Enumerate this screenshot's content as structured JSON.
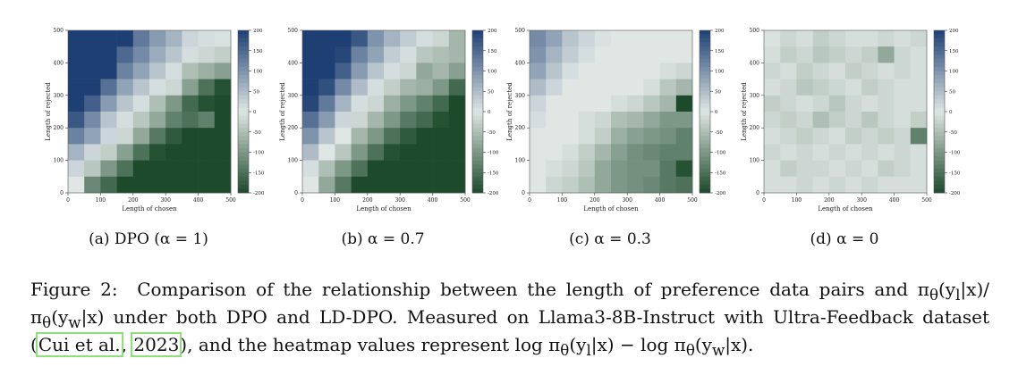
{
  "colorbar": {
    "min": -200,
    "max": 200,
    "ticks": [
      200,
      150,
      100,
      50,
      0,
      -50,
      -100,
      -150,
      -200
    ]
  },
  "colormap": {
    "negative": "#1c4a2b",
    "mid": "#dfe6e4",
    "positive": "#1d3f73"
  },
  "chart_data": [
    {
      "type": "heatmap",
      "xlabel": "Length of chosen",
      "ylabel": "Length of rejected",
      "xticks": [
        0,
        100,
        200,
        300,
        400,
        500
      ],
      "yticks": [
        0,
        100,
        200,
        300,
        400,
        500
      ],
      "xlim": [
        0,
        500
      ],
      "ylim": [
        0,
        500
      ],
      "subcaption": "(a) DPO (α = 1)",
      "rows_top_to_bottom": [
        [
          200,
          200,
          200,
          200,
          130,
          90,
          60,
          20,
          10,
          5
        ],
        [
          200,
          200,
          200,
          150,
          110,
          70,
          40,
          10,
          -20,
          -30
        ],
        [
          200,
          200,
          200,
          120,
          80,
          40,
          10,
          -50,
          -70,
          -90
        ],
        [
          200,
          200,
          140,
          80,
          40,
          10,
          -20,
          -90,
          -150,
          -190
        ],
        [
          200,
          160,
          90,
          40,
          10,
          -50,
          -100,
          -160,
          -190,
          -200
        ],
        [
          170,
          110,
          40,
          10,
          -40,
          -80,
          -130,
          -150,
          -130,
          -200
        ],
        [
          120,
          80,
          20,
          -20,
          -80,
          -140,
          -180,
          -200,
          -200,
          -200
        ],
        [
          60,
          20,
          -30,
          -90,
          -150,
          -190,
          -200,
          -200,
          -200,
          -200
        ],
        [
          20,
          -40,
          -100,
          -150,
          -200,
          -200,
          -200,
          -200,
          -200,
          -200
        ],
        [
          0,
          -120,
          -160,
          -200,
          -200,
          -200,
          -200,
          -200,
          -200,
          -200
        ]
      ]
    },
    {
      "type": "heatmap",
      "xlabel": "Length of chosen",
      "ylabel": "Length of rejected",
      "xticks": [
        0,
        100,
        200,
        300,
        400,
        500
      ],
      "yticks": [
        0,
        100,
        200,
        300,
        400,
        500
      ],
      "xlim": [
        0,
        500
      ],
      "ylim": [
        0,
        500
      ],
      "subcaption": "(b) α = 0.7",
      "rows_top_to_bottom": [
        [
          200,
          200,
          200,
          170,
          100,
          60,
          30,
          10,
          -20,
          -60
        ],
        [
          200,
          200,
          190,
          120,
          80,
          30,
          10,
          -40,
          -50,
          -60
        ],
        [
          200,
          200,
          160,
          90,
          40,
          10,
          -20,
          -80,
          -60,
          -90
        ],
        [
          200,
          180,
          110,
          50,
          10,
          -30,
          -60,
          -70,
          -100,
          -160
        ],
        [
          190,
          130,
          60,
          10,
          -20,
          -70,
          -100,
          -130,
          -160,
          -200
        ],
        [
          140,
          90,
          20,
          -20,
          -60,
          -100,
          -140,
          -160,
          -190,
          -200
        ],
        [
          100,
          40,
          0,
          -60,
          -100,
          -150,
          -180,
          -200,
          -200,
          -200
        ],
        [
          50,
          0,
          -40,
          -100,
          -150,
          -190,
          -200,
          -200,
          -200,
          -200
        ],
        [
          10,
          -50,
          -100,
          -150,
          -200,
          -200,
          -200,
          -200,
          -200,
          -200
        ],
        [
          0,
          -80,
          -140,
          -200,
          -200,
          -200,
          -200,
          -200,
          -200,
          -200
        ]
      ]
    },
    {
      "type": "heatmap",
      "xlabel": "Length of chosen",
      "ylabel": "Length of rejected",
      "xticks": [
        0,
        100,
        200,
        300,
        400,
        500
      ],
      "yticks": [
        0,
        100,
        200,
        300,
        400,
        500
      ],
      "xlim": [
        0,
        500
      ],
      "ylim": [
        0,
        500
      ],
      "subcaption": "(c) α = 0.3",
      "rows_top_to_bottom": [
        [
          110,
          80,
          40,
          20,
          5,
          0,
          0,
          0,
          0,
          0
        ],
        [
          100,
          60,
          30,
          10,
          0,
          0,
          0,
          0,
          0,
          0
        ],
        [
          80,
          40,
          10,
          0,
          0,
          0,
          0,
          0,
          -10,
          -20
        ],
        [
          50,
          20,
          0,
          0,
          0,
          0,
          0,
          -10,
          -40,
          -60
        ],
        [
          20,
          0,
          0,
          0,
          0,
          -10,
          -20,
          -40,
          -60,
          -200
        ],
        [
          10,
          0,
          0,
          -10,
          -20,
          -50,
          -60,
          -80,
          -100,
          -100
        ],
        [
          0,
          0,
          0,
          -10,
          -30,
          -70,
          -90,
          -100,
          -110,
          -130
        ],
        [
          0,
          0,
          -10,
          -30,
          -60,
          -90,
          -110,
          -120,
          -130,
          -130
        ],
        [
          0,
          -10,
          -20,
          -40,
          -80,
          -100,
          -110,
          -110,
          -140,
          -190
        ],
        [
          0,
          -20,
          -30,
          -50,
          -80,
          -100,
          -110,
          -120,
          -140,
          -150
        ]
      ]
    },
    {
      "type": "heatmap",
      "xlabel": "Length of chosen",
      "ylabel": "Length of rejected",
      "xticks": [
        0,
        100,
        200,
        300,
        400,
        500
      ],
      "yticks": [
        0,
        100,
        200,
        300,
        400,
        500
      ],
      "xlim": [
        0,
        500
      ],
      "ylim": [
        0,
        500
      ],
      "subcaption": "(d) α = 0",
      "rows_top_to_bottom": [
        [
          -5,
          -20,
          -10,
          -30,
          -20,
          -10,
          -10,
          -20,
          -10,
          -20
        ],
        [
          -10,
          -30,
          -20,
          -40,
          -30,
          -20,
          -30,
          -80,
          -20,
          -10
        ],
        [
          -20,
          -10,
          -30,
          -20,
          -10,
          -30,
          -20,
          -10,
          -20,
          -10
        ],
        [
          -10,
          -20,
          -40,
          -30,
          -20,
          -10,
          -30,
          -20,
          -10,
          -10
        ],
        [
          -30,
          -20,
          -10,
          -20,
          -40,
          -20,
          -10,
          -20,
          -10,
          -10
        ],
        [
          -20,
          -30,
          -20,
          -50,
          -30,
          -20,
          -40,
          -20,
          -10,
          -30
        ],
        [
          -10,
          -20,
          -30,
          -20,
          -10,
          -30,
          -20,
          -30,
          -20,
          -130
        ],
        [
          -20,
          -10,
          -20,
          -10,
          -20,
          -10,
          -20,
          -10,
          -20,
          -10
        ],
        [
          -10,
          -30,
          -20,
          -20,
          -10,
          -20,
          -10,
          -30,
          -20,
          -10
        ],
        [
          -10,
          -10,
          -20,
          -10,
          -20,
          -10,
          -20,
          -10,
          -10,
          -10
        ]
      ]
    }
  ],
  "caption": {
    "label": "Figure 2:",
    "text_1": "Comparison of the relationship between the length of preference data pairs and π",
    "sub_theta_1": "θ",
    "text_2": "(y",
    "sub_l_1": "l",
    "text_3": "|x)/π",
    "sub_theta_2": "θ",
    "text_4": "(y",
    "sub_w_1": "w",
    "text_5": "|x) under both DPO and LD-DPO. Measured on Llama3-8B-Instruct with Ultra-Feedback dataset (",
    "cite_1": "Cui et al.",
    "text_6": ", ",
    "cite_2": "2023",
    "text_7": "), and the heatmap values represent log π",
    "sub_theta_3": "θ",
    "text_8": "(y",
    "sub_l_2": "l",
    "text_9": "|x) − log π",
    "sub_theta_4": "θ",
    "text_10": "(y",
    "sub_w_2": "w",
    "text_11": "|x)."
  }
}
